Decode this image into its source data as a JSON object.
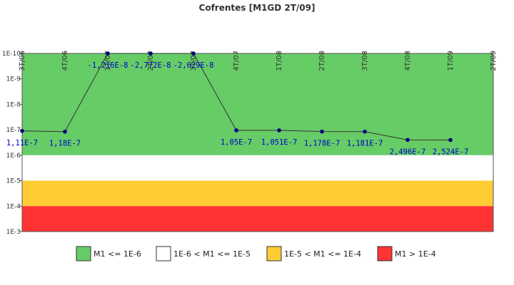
{
  "chart_data": {
    "type": "line",
    "title": "Cofrentes [M1GD 2T/09]",
    "categories": [
      "3T/06",
      "4T/06",
      "1T/07",
      "2T/07",
      "3T/07",
      "4T/07",
      "1T/08",
      "2T/08",
      "3T/08",
      "4T/08",
      "1T/09",
      "2T/09"
    ],
    "series": [
      {
        "name": "M1",
        "color": "#000080",
        "line_color": "#333333",
        "values": [
          1.11e-07,
          1.18e-07,
          -1.216e-08,
          -2.772e-08,
          -2.629e-08,
          1.05e-07,
          1.051e-07,
          1.178e-07,
          1.181e-07,
          2.496e-07,
          2.524e-07,
          null
        ],
        "value_labels": [
          "1,11E-7",
          "1,18E-7",
          "-1,216E-8",
          "-2,772E-8",
          "-2,629E-8",
          "1,05E-7",
          "1,051E-7",
          "1,178E-7",
          "1,181E-7",
          "2,496E-7",
          "2,524E-7",
          null
        ]
      }
    ],
    "log_scale": true,
    "ylim": [
      0.001,
      1e-10
    ],
    "yticks": [
      {
        "value": 1e-10,
        "label": "1E-10"
      },
      {
        "value": 1e-09,
        "label": "1E-9"
      },
      {
        "value": 1e-08,
        "label": "1E-8"
      },
      {
        "value": 1e-07,
        "label": "1E-7"
      },
      {
        "value": 1e-06,
        "label": "1E-6"
      },
      {
        "value": 1e-05,
        "label": "1E-5"
      },
      {
        "value": 0.0001,
        "label": "1E-4"
      },
      {
        "value": 0.001,
        "label": "1E-3"
      }
    ],
    "bands": [
      {
        "name": "M1 <= 1E-6",
        "from": 1e-10,
        "to": 1e-06,
        "color": "#66cc66"
      },
      {
        "name": "1E-6 < M1 <= 1E-5",
        "from": 1e-06,
        "to": 1e-05,
        "color": "#ffffff"
      },
      {
        "name": "1E-5 < M1 <= 1E-4",
        "from": 1e-05,
        "to": 0.0001,
        "color": "#ffcc33"
      },
      {
        "name": "M1 > 1E-4",
        "from": 0.0001,
        "to": 0.001,
        "color": "#ff3333"
      }
    ],
    "legend": "bottom"
  }
}
